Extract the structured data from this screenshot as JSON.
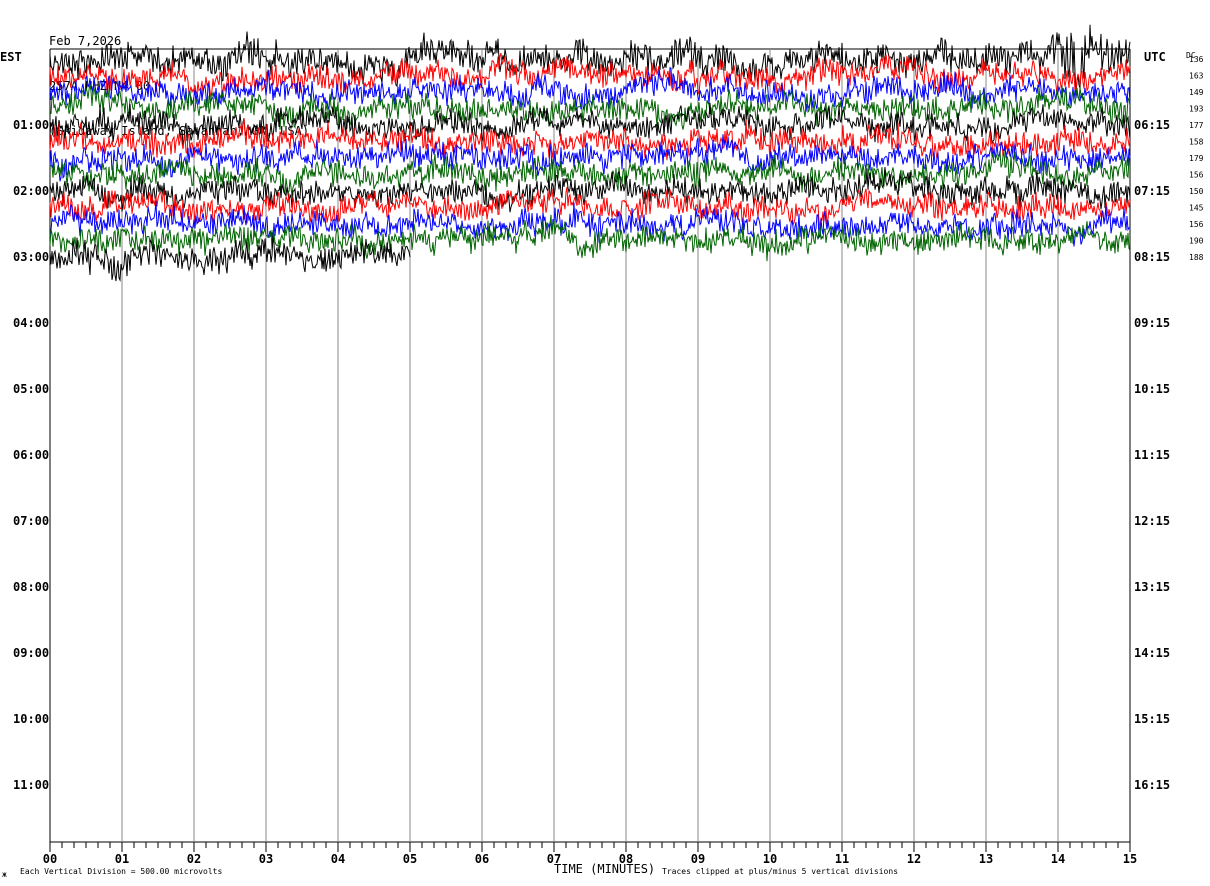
{
  "header": {
    "date": "Feb 7,2026",
    "station": "257A HHZ N4 00",
    "location": "(Skidaway Island, Savannah, GA, USA)"
  },
  "left_timezone": "EST",
  "right_timezone": "UTC",
  "dc_label": "DC",
  "footer": {
    "scale_text": "Each Vertical Division =  500.00 microvolts",
    "xlabel": "TIME (MINUTES)",
    "clip_text": "Traces clipped at plus/minus 5 vertical divisions",
    "corner_mark": "ж"
  },
  "colors": {
    "trace_cycle": [
      "#000000",
      "#ff0000",
      "#0000ff",
      "#006400"
    ],
    "grid": "#888888"
  },
  "chart_data": {
    "type": "line",
    "title": "Feb 7,2026 257A HHZ N4 00",
    "xlabel": "TIME (MINUTES)",
    "xlim": [
      0,
      15
    ],
    "x_ticks": [
      "00",
      "01",
      "02",
      "03",
      "04",
      "05",
      "06",
      "07",
      "08",
      "09",
      "10",
      "11",
      "12",
      "13",
      "14",
      "15"
    ],
    "left_hour_labels": [
      "01:00",
      "02:00",
      "03:00",
      "04:00",
      "05:00",
      "06:00",
      "07:00",
      "08:00",
      "09:00",
      "10:00",
      "11:00"
    ],
    "right_hour_labels": [
      "06:15",
      "07:15",
      "08:15",
      "09:15",
      "10:15",
      "11:15",
      "12:15",
      "13:15",
      "14:15",
      "15:15",
      "16:15"
    ],
    "dc_offsets": [
      136,
      163,
      149,
      193,
      177,
      158,
      179,
      156,
      150,
      145,
      156,
      190,
      188
    ],
    "trace_minutes": [
      15,
      15,
      15,
      15,
      15,
      15,
      15,
      15,
      15,
      15,
      15,
      15,
      5
    ],
    "trace_amplitude_scale": [
      1.2,
      1.0,
      1.0,
      1.0,
      1.0,
      1.0,
      1.0,
      1.0,
      1.0,
      1.0,
      1.0,
      1.0,
      1.1
    ],
    "grid": true
  }
}
